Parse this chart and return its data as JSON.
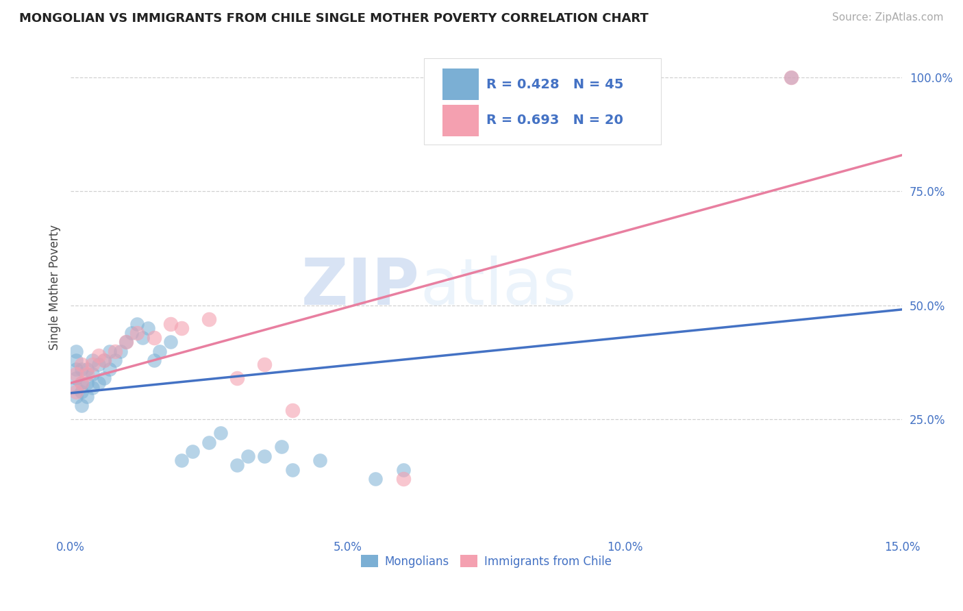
{
  "title": "MONGOLIAN VS IMMIGRANTS FROM CHILE SINGLE MOTHER POVERTY CORRELATION CHART",
  "source": "Source: ZipAtlas.com",
  "ylabel": "Single Mother Poverty",
  "xlim": [
    0.0,
    0.15
  ],
  "ylim": [
    0.0,
    1.08
  ],
  "xticks": [
    0.0,
    0.05,
    0.1,
    0.15
  ],
  "xtick_labels": [
    "0.0%",
    "5.0%",
    "10.0%",
    "15.0%"
  ],
  "yticks": [
    0.25,
    0.5,
    0.75,
    1.0
  ],
  "ytick_labels": [
    "25.0%",
    "50.0%",
    "75.0%",
    "100.0%"
  ],
  "mongolian_color": "#7bafd4",
  "chile_color": "#f4a0b0",
  "mongolian_R": 0.428,
  "mongolian_N": 45,
  "chile_R": 0.693,
  "chile_N": 20,
  "mongolian_line_color": "#4472c4",
  "chile_line_color": "#e87fa0",
  "legend_mongolians": "Mongolians",
  "legend_chile": "Immigrants from Chile",
  "background_color": "#ffffff",
  "mongolian_x": [
    0.001,
    0.001,
    0.001,
    0.001,
    0.001,
    0.001,
    0.002,
    0.002,
    0.002,
    0.002,
    0.003,
    0.003,
    0.003,
    0.004,
    0.004,
    0.004,
    0.005,
    0.005,
    0.006,
    0.006,
    0.007,
    0.007,
    0.008,
    0.009,
    0.01,
    0.011,
    0.012,
    0.013,
    0.014,
    0.015,
    0.016,
    0.018,
    0.02,
    0.022,
    0.025,
    0.027,
    0.03,
    0.032,
    0.035,
    0.038,
    0.04,
    0.045,
    0.055,
    0.06,
    0.13
  ],
  "mongolian_y": [
    0.3,
    0.32,
    0.34,
    0.36,
    0.38,
    0.4,
    0.28,
    0.31,
    0.33,
    0.36,
    0.3,
    0.33,
    0.36,
    0.32,
    0.35,
    0.38,
    0.33,
    0.37,
    0.34,
    0.38,
    0.36,
    0.4,
    0.38,
    0.4,
    0.42,
    0.44,
    0.46,
    0.43,
    0.45,
    0.38,
    0.4,
    0.42,
    0.16,
    0.18,
    0.2,
    0.22,
    0.15,
    0.17,
    0.17,
    0.19,
    0.14,
    0.16,
    0.12,
    0.14,
    1.0
  ],
  "chile_x": [
    0.001,
    0.001,
    0.002,
    0.002,
    0.003,
    0.004,
    0.005,
    0.006,
    0.008,
    0.01,
    0.012,
    0.015,
    0.018,
    0.02,
    0.025,
    0.03,
    0.035,
    0.04,
    0.06,
    0.13
  ],
  "chile_y": [
    0.31,
    0.35,
    0.33,
    0.37,
    0.35,
    0.37,
    0.39,
    0.38,
    0.4,
    0.42,
    0.44,
    0.43,
    0.46,
    0.45,
    0.47,
    0.34,
    0.37,
    0.27,
    0.12,
    1.0
  ]
}
